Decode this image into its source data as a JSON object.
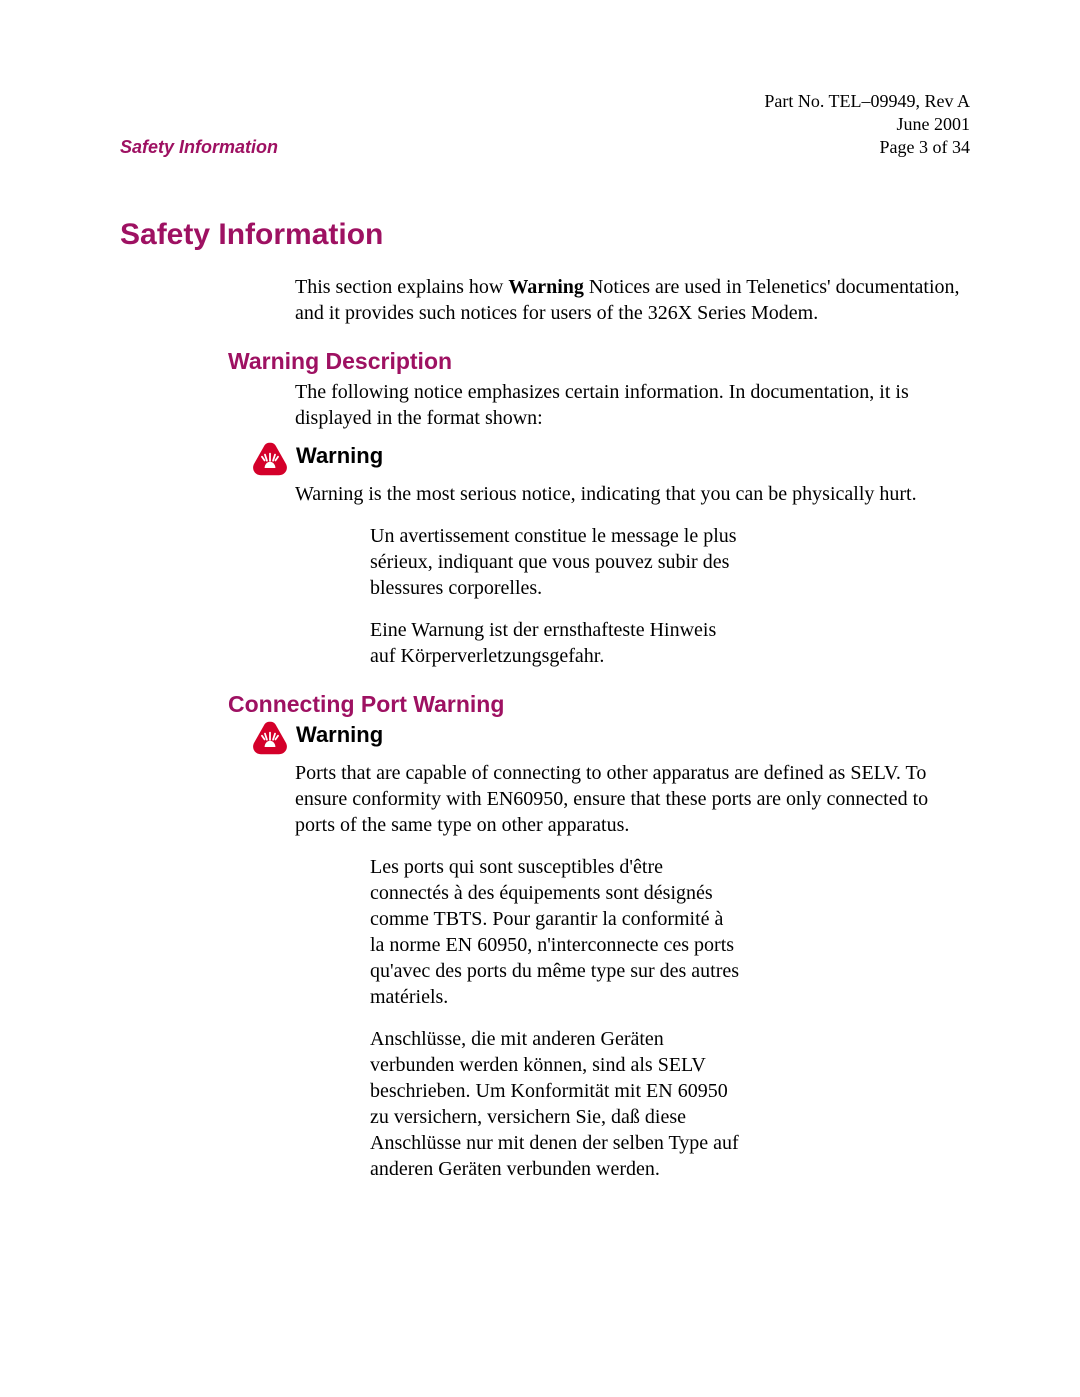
{
  "header": {
    "part_no": "Part No. TEL–09949, Rev A",
    "date": "June 2001",
    "section_label": "Safety Information",
    "page": "Page 3 of 34"
  },
  "title": "Safety Information",
  "intro_html": "This section explains how <b>Warning</b> Notices are used in Telenetics' documentation, and it provides such notices for users of the 326X Series Modem.",
  "section1": {
    "heading": "Warning Description",
    "body": "The following notice emphasizes certain information. In documentation, it is displayed in the format shown:",
    "warning_label": "Warning",
    "warning_text": "Warning is the most serious notice, indicating that you can be physically hurt.",
    "fr": "Un avertissement constitue le message le plus sérieux, indiquant que vous pouvez subir des blessures corporelles.",
    "de": "Eine Warnung ist der ernsthafteste Hinweis auf Körperverletzungsgefahr."
  },
  "section2": {
    "heading": "Connecting Port Warning",
    "warning_label": "Warning",
    "warning_text": "Ports that are capable of connecting to other apparatus are defined as SELV. To ensure conformity with EN60950, ensure that these ports are only connected to ports of the same type on other apparatus.",
    "fr": "Les ports qui sont susceptibles d'être connectés à des équipements sont désignés comme TBTS. Pour garantir la conformité à la norme EN 60950, n'interconnecte ces ports qu'avec des ports du même type sur des autres matériels.",
    "de": "Anschlüsse, die mit anderen Geräten verbunden werden können, sind als SELV beschrieben. Um Konformität mit EN 60950 zu versichern, versichern Sie, daß diese Anschlüsse nur mit denen der selben Type auf anderen Geräten verbunden werden."
  },
  "colors": {
    "accent": "#9e1162",
    "icon_fill": "#d4002a",
    "text": "#000000",
    "background": "#ffffff"
  },
  "typography": {
    "body_family": "Times New Roman",
    "heading_family": "Arial",
    "title_size_pt": 22,
    "subheading_size_pt": 17,
    "body_size_pt": 15
  }
}
